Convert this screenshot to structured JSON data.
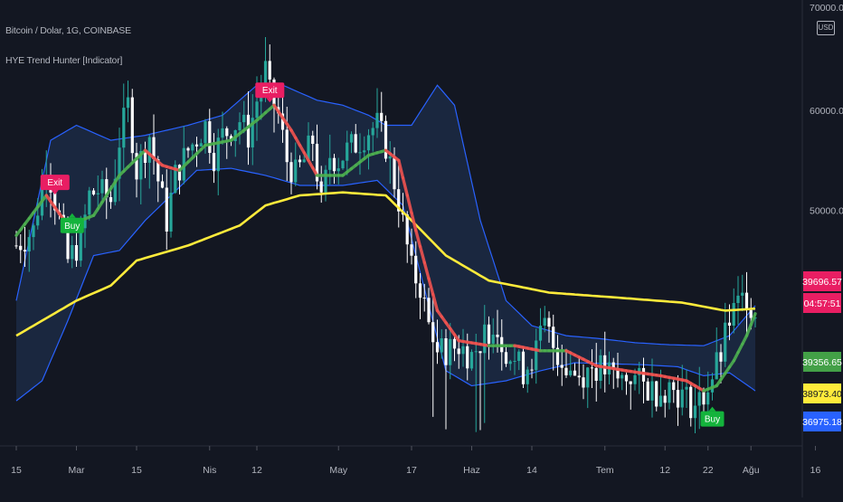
{
  "header": {
    "symbol_line": "Bitcoin / Dolar, 1G, COINBASE",
    "indicator_line": "HYE Trend Hunter [Indicator]",
    "currency": "USD",
    "top_tick": "70000.00"
  },
  "colors": {
    "background": "#131722",
    "up_candle": "#26a69a",
    "down_candle": "#ffffff",
    "band": "#2962ff",
    "band_fill": "#1e2d4a",
    "slow_ma": "#ffeb3b",
    "fast_ma_up": "#4caf50",
    "fast_ma_down": "#ef5350",
    "exit_signal": "#e91e63",
    "buy_signal": "#14b33c",
    "price_tag": "#e91e63"
  },
  "chart_data": {
    "type": "candlestick",
    "title": "Bitcoin / Dolar, 1G, COINBASE",
    "indicator": "HYE Trend Hunter [Indicator]",
    "ylim": [
      26500,
      71000
    ],
    "y_ticks": [
      "60000.00",
      "50000.00"
    ],
    "x_ticks": [
      "15",
      "Mar",
      "15",
      "Nis",
      "12",
      "May",
      "17",
      "Haz",
      "14",
      "Tem",
      "12",
      "22",
      "Ağu",
      "16"
    ],
    "x_tick_day_index": [
      0,
      14,
      28,
      45,
      56,
      75,
      92,
      106,
      120,
      137,
      151,
      161,
      171,
      186
    ],
    "price_key_points": [
      [
        0,
        46500
      ],
      [
        4,
        48000
      ],
      [
        7,
        55000
      ],
      [
        10,
        49000
      ],
      [
        12,
        45000
      ],
      [
        15,
        47000
      ],
      [
        17,
        51500
      ],
      [
        19,
        52000
      ],
      [
        22,
        51000
      ],
      [
        24,
        57000
      ],
      [
        26,
        60500
      ],
      [
        28,
        54000
      ],
      [
        31,
        57500
      ],
      [
        33,
        53000
      ],
      [
        35,
        49000
      ],
      [
        37,
        53500
      ],
      [
        40,
        56000
      ],
      [
        44,
        58500
      ],
      [
        46,
        55500
      ],
      [
        48,
        57500
      ],
      [
        52,
        59000
      ],
      [
        54,
        57500
      ],
      [
        56,
        61000
      ],
      [
        58,
        64000
      ],
      [
        59,
        61500
      ],
      [
        61,
        59500
      ],
      [
        63,
        55000
      ],
      [
        65,
        53500
      ],
      [
        67,
        55000
      ],
      [
        69,
        57000
      ],
      [
        71,
        50500
      ],
      [
        73,
        55500
      ],
      [
        75,
        55000
      ],
      [
        77,
        56000
      ],
      [
        80,
        57000
      ],
      [
        82,
        58000
      ],
      [
        84,
        58500
      ],
      [
        86,
        56500
      ],
      [
        89,
        51000
      ],
      [
        92,
        44000
      ],
      [
        94,
        42500
      ],
      [
        96,
        38500
      ],
      [
        98,
        36000
      ],
      [
        100,
        36000
      ],
      [
        103,
        36500
      ],
      [
        106,
        35500
      ],
      [
        109,
        37500
      ],
      [
        111,
        39000
      ],
      [
        113,
        37000
      ],
      [
        115,
        35500
      ],
      [
        118,
        34000
      ],
      [
        121,
        36000
      ],
      [
        123,
        38500
      ],
      [
        125,
        36500
      ],
      [
        128,
        34500
      ],
      [
        131,
        33500
      ],
      [
        134,
        34500
      ],
      [
        137,
        34000
      ],
      [
        140,
        33000
      ],
      [
        143,
        33500
      ],
      [
        146,
        32500
      ],
      [
        149,
        32000
      ],
      [
        152,
        32500
      ],
      [
        155,
        31500
      ],
      [
        158,
        30500
      ],
      [
        160,
        31500
      ],
      [
        162,
        33500
      ],
      [
        164,
        35500
      ],
      [
        166,
        39000
      ],
      [
        168,
        40500
      ],
      [
        170,
        41500
      ],
      [
        171,
        40500
      ],
      [
        172,
        39700
      ]
    ],
    "series": [
      {
        "name": "HYE slow MA",
        "color": "#ffeb3b",
        "points": [
          [
            0,
            37500
          ],
          [
            14,
            41000
          ],
          [
            22,
            42500
          ],
          [
            28,
            45000
          ],
          [
            40,
            46500
          ],
          [
            52,
            48500
          ],
          [
            58,
            50500
          ],
          [
            66,
            51500
          ],
          [
            76,
            51800
          ],
          [
            86,
            51500
          ],
          [
            92,
            49000
          ],
          [
            100,
            45500
          ],
          [
            110,
            43000
          ],
          [
            124,
            41800
          ],
          [
            140,
            41300
          ],
          [
            155,
            40800
          ],
          [
            165,
            40000
          ],
          [
            172,
            40200
          ]
        ]
      },
      {
        "name": "HYE fast MA",
        "color": "#4caf50",
        "points": [
          [
            0,
            47500
          ],
          [
            7,
            51500
          ],
          [
            12,
            48500
          ],
          [
            18,
            49500
          ],
          [
            24,
            53500
          ],
          [
            30,
            56000
          ],
          [
            34,
            54500
          ],
          [
            38,
            54000
          ],
          [
            44,
            56500
          ],
          [
            50,
            57000
          ],
          [
            56,
            59000
          ],
          [
            60,
            60500
          ],
          [
            64,
            58000
          ],
          [
            70,
            53500
          ],
          [
            76,
            53500
          ],
          [
            82,
            55500
          ],
          [
            86,
            56000
          ],
          [
            89,
            55000
          ],
          [
            93,
            48000
          ],
          [
            98,
            40000
          ],
          [
            103,
            37000
          ],
          [
            110,
            36500
          ],
          [
            116,
            36500
          ],
          [
            122,
            36000
          ],
          [
            128,
            36000
          ],
          [
            135,
            34500
          ],
          [
            142,
            34000
          ],
          [
            150,
            33500
          ],
          [
            156,
            33000
          ],
          [
            160,
            32000
          ],
          [
            163,
            32500
          ],
          [
            167,
            35000
          ],
          [
            170,
            37500
          ],
          [
            172,
            39700
          ]
        ]
      },
      {
        "name": "HYE upper band",
        "color": "#2962ff",
        "points": [
          [
            0,
            41000
          ],
          [
            8,
            57000
          ],
          [
            14,
            58500
          ],
          [
            22,
            57000
          ],
          [
            30,
            57500
          ],
          [
            40,
            58500
          ],
          [
            48,
            59500
          ],
          [
            56,
            62500
          ],
          [
            62,
            62500
          ],
          [
            70,
            61000
          ],
          [
            76,
            60500
          ],
          [
            82,
            59500
          ],
          [
            86,
            58500
          ],
          [
            92,
            58500
          ],
          [
            98,
            62500
          ],
          [
            102,
            60500
          ],
          [
            108,
            49000
          ],
          [
            114,
            41000
          ],
          [
            120,
            38500
          ],
          [
            128,
            37500
          ],
          [
            136,
            37200
          ],
          [
            144,
            36800
          ],
          [
            152,
            36600
          ],
          [
            160,
            36500
          ],
          [
            166,
            37500
          ],
          [
            172,
            40500
          ]
        ]
      },
      {
        "name": "HYE lower band",
        "color": "#2962ff",
        "points": [
          [
            0,
            31000
          ],
          [
            6,
            33000
          ],
          [
            12,
            39000
          ],
          [
            18,
            45500
          ],
          [
            24,
            46000
          ],
          [
            30,
            49000
          ],
          [
            36,
            51500
          ],
          [
            42,
            54000
          ],
          [
            50,
            54200
          ],
          [
            58,
            53500
          ],
          [
            66,
            52500
          ],
          [
            76,
            52500
          ],
          [
            84,
            53000
          ],
          [
            90,
            50500
          ],
          [
            96,
            40500
          ],
          [
            100,
            34000
          ],
          [
            106,
            32500
          ],
          [
            114,
            33000
          ],
          [
            122,
            34000
          ],
          [
            130,
            34800
          ],
          [
            138,
            34700
          ],
          [
            146,
            34600
          ],
          [
            154,
            34400
          ],
          [
            160,
            33500
          ],
          [
            166,
            33800
          ],
          [
            172,
            32000
          ]
        ]
      }
    ],
    "signals": [
      {
        "label": "Exit",
        "day": 9,
        "price": 52800,
        "color": "#e91e63"
      },
      {
        "label": "Buy",
        "day": 13,
        "price": 48500,
        "color": "#14b33c"
      },
      {
        "label": "Exit",
        "day": 59,
        "price": 62000,
        "color": "#e91e63"
      },
      {
        "label": "Buy",
        "day": 162,
        "price": 29200,
        "color": "#14b33c"
      }
    ],
    "price_tags": [
      {
        "label": "39696.57",
        "color": "#e91e63"
      },
      {
        "label": "04:57:51",
        "color": "#e91e63"
      },
      {
        "label": "39356.65",
        "color": "#43a047"
      },
      {
        "label": "38973.40",
        "color": "#ffeb3b"
      },
      {
        "label": "36975.18",
        "color": "#2962ff"
      }
    ]
  }
}
